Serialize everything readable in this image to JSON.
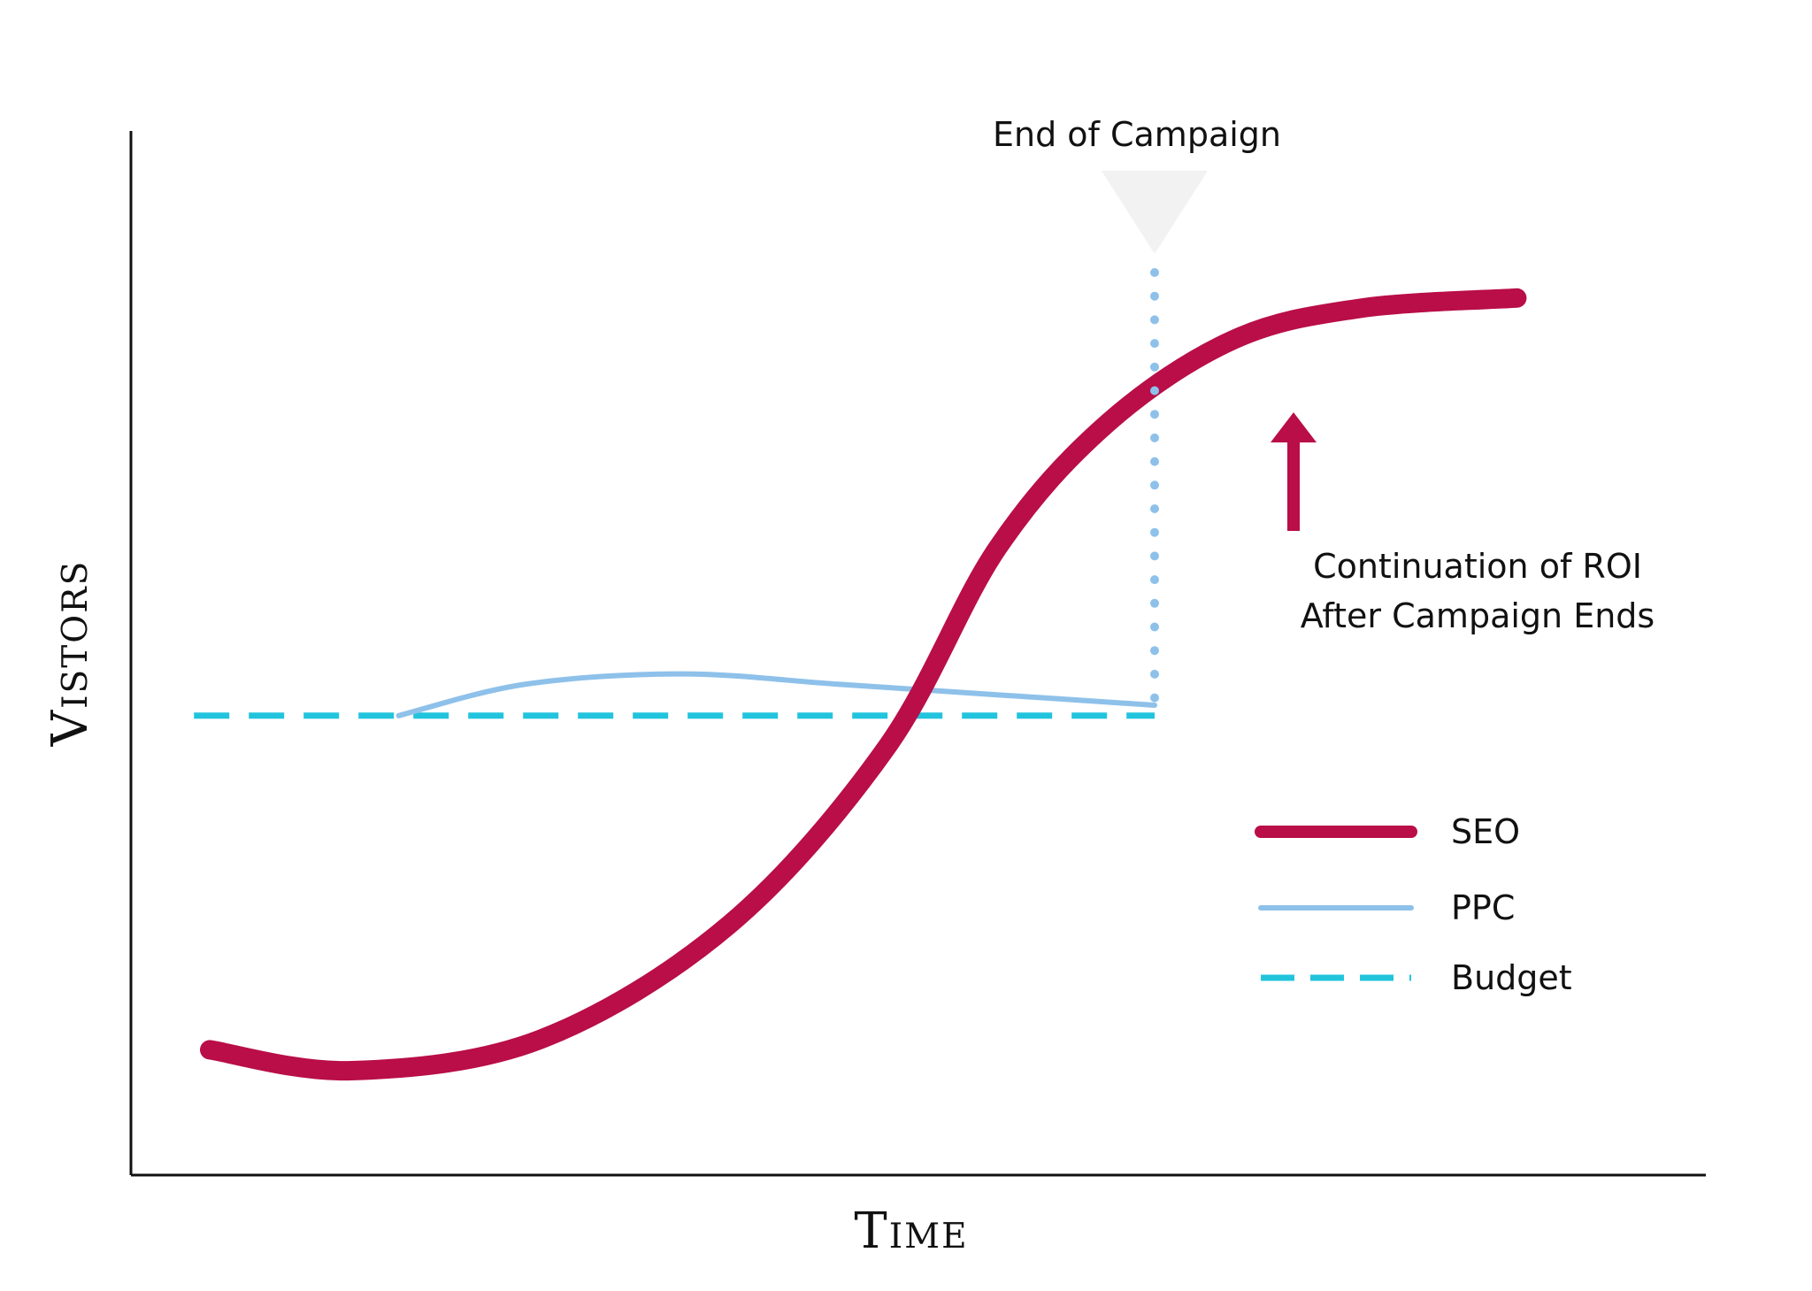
{
  "chart_data": {
    "type": "line",
    "title": "",
    "xlabel": "Time",
    "ylabel": "Vistors",
    "xlim": [
      0,
      100
    ],
    "ylim": [
      0,
      100
    ],
    "grid": false,
    "legend_position": "bottom-right",
    "ticks": "none",
    "series": [
      {
        "name": "SEO",
        "color": "#b90e48",
        "style": "solid-thick",
        "points": [
          [
            5,
            12
          ],
          [
            14,
            10
          ],
          [
            26,
            13
          ],
          [
            38,
            24
          ],
          [
            48,
            41
          ],
          [
            55,
            60
          ],
          [
            62,
            72
          ],
          [
            70,
            80
          ],
          [
            78,
            83
          ],
          [
            88,
            84
          ]
        ]
      },
      {
        "name": "PPC",
        "color": "#8ec1ea",
        "style": "solid-thin",
        "points": [
          [
            17,
            44
          ],
          [
            25,
            47
          ],
          [
            35,
            48
          ],
          [
            45,
            47
          ],
          [
            55,
            46
          ],
          [
            65,
            45
          ]
        ]
      },
      {
        "name": "Budget",
        "color": "#22c4dd",
        "style": "dashed",
        "points": [
          [
            4,
            44
          ],
          [
            65,
            44
          ]
        ]
      }
    ],
    "annotations": {
      "campaign_end": {
        "x": 65,
        "label": "End of Campaign",
        "line_color": "#8ec1ea",
        "marker_color": "#f2f2f2"
      },
      "roi_note": {
        "lines": [
          "Continuation of ROI",
          "After Campaign Ends"
        ],
        "arrow_color": "#b90e48"
      }
    }
  }
}
